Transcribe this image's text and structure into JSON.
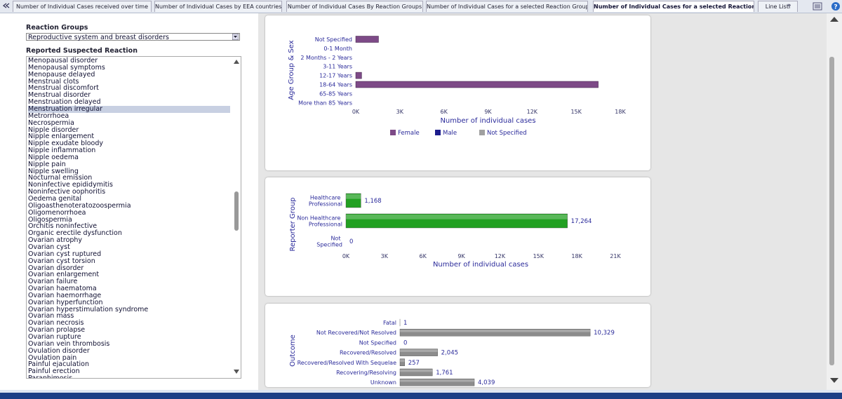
{
  "tabs": [
    "Number of Individual Cases received over time",
    "Number of Individual Cases by EEA countries",
    "Number of Individual Cases By Reaction Groups",
    "Number of Individual Cases for a selected Reaction Group",
    "Number of Individual Cases for a selected Reaction",
    "Line Listi"
  ],
  "active_tab": 4,
  "left_panel": {
    "reaction_groups_label": "Reaction Groups",
    "reaction_group_value": "Reproductive system and breast disorders",
    "reaction_label": "Reported Suspected Reaction",
    "reactions": [
      "Menopausal disorder",
      "Menopausal symptoms",
      "Menopause delayed",
      "Menstrual clots",
      "Menstrual discomfort",
      "Menstrual disorder",
      "Menstruation delayed",
      "Menstruation irregular",
      "Metrorrhoea",
      "Necrospermia",
      "Nipple disorder",
      "Nipple enlargement",
      "Nipple exudate bloody",
      "Nipple inflammation",
      "Nipple oedema",
      "Nipple pain",
      "Nipple swelling",
      "Nocturnal emission",
      "Noninfective epididymitis",
      "Noninfective oophoritis",
      "Oedema genital",
      "Oligoasthenoteratozoospermia",
      "Oligomenorrhoea",
      "Oligospermia",
      "Orchitis noninfective",
      "Organic erectile dysfunction",
      "Ovarian atrophy",
      "Ovarian cyst",
      "Ovarian cyst ruptured",
      "Ovarian cyst torsion",
      "Ovarian disorder",
      "Ovarian enlargement",
      "Ovarian failure",
      "Ovarian haematoma",
      "Ovarian haemorrhage",
      "Ovarian hyperfunction",
      "Ovarian hyperstimulation syndrome",
      "Ovarian mass",
      "Ovarian necrosis",
      "Ovarian prolapse",
      "Ovarian rupture",
      "Ovarian vein thrombosis",
      "Ovulation disorder",
      "Ovulation pain",
      "Painful ejaculation",
      "Painful erection",
      "Paraphimosis"
    ],
    "selected_reaction": 7
  },
  "chart_data": [
    {
      "type": "bar",
      "y_label": "Age Group & Sex",
      "x_label": "Number of individual cases",
      "categories": [
        "Not Specified",
        "0-1 Month",
        "2 Months - 2 Years",
        "3-11 Years",
        "12-17 Years",
        "18-64 Years",
        "65-85 Years",
        "More than 85 Years"
      ],
      "series": [
        {
          "name": "Female",
          "color": "#7d4a87",
          "values": [
            1550,
            0,
            0,
            0,
            400,
            16500,
            0,
            0
          ]
        },
        {
          "name": "Male",
          "color": "#1c1c8c",
          "values": [
            0,
            0,
            0,
            0,
            0,
            0,
            0,
            0
          ]
        },
        {
          "name": "Not Specified",
          "color": "#a0a0a0",
          "values": [
            0,
            0,
            0,
            0,
            0,
            0,
            0,
            0
          ]
        }
      ],
      "xlim": [
        0,
        18000
      ],
      "xticks": [
        {
          "value": 0,
          "label": "0K"
        },
        {
          "value": 3000,
          "label": "3K"
        },
        {
          "value": 6000,
          "label": "6K"
        },
        {
          "value": 9000,
          "label": "9K"
        },
        {
          "value": 12000,
          "label": "12K"
        },
        {
          "value": 15000,
          "label": "15K"
        },
        {
          "value": 18000,
          "label": "18K"
        }
      ],
      "legend": "bottom"
    },
    {
      "type": "bar",
      "y_label": "Reporter Group",
      "x_label": "Number of individual cases",
      "categories": [
        "Healthcare Professional",
        "Non Healthcare Professional",
        "Not Specified"
      ],
      "values": [
        1168,
        17264,
        0
      ],
      "value_labels": [
        "1,168",
        "17,264",
        "0"
      ],
      "color": "#22a022",
      "xlim": [
        0,
        21000
      ],
      "xticks": [
        {
          "value": 0,
          "label": "0K"
        },
        {
          "value": 3000,
          "label": "3K"
        },
        {
          "value": 6000,
          "label": "6K"
        },
        {
          "value": 9000,
          "label": "9K"
        },
        {
          "value": 12000,
          "label": "12K"
        },
        {
          "value": 15000,
          "label": "15K"
        },
        {
          "value": 18000,
          "label": "18K"
        },
        {
          "value": 21000,
          "label": "21K"
        }
      ]
    },
    {
      "type": "bar",
      "y_label": "Outcome",
      "categories": [
        "Fatal",
        "Not Recovered/Not Resolved",
        "Not Specified",
        "Recovered/Resolved",
        "Recovered/Resolved With Sequelae",
        "Recovering/Resolving",
        "Unknown"
      ],
      "values": [
        1,
        10329,
        0,
        2045,
        257,
        1761,
        4039
      ],
      "value_labels": [
        "1",
        "10,329",
        "0",
        "2,045",
        "257",
        "1,761",
        "4,039"
      ],
      "color": "#8c8c8c",
      "xlim": [
        0,
        12000
      ]
    }
  ]
}
